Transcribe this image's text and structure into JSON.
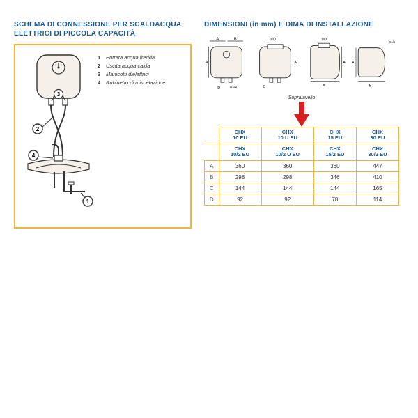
{
  "accent_color": "#1d5a91",
  "border_color": "#f3b33d",
  "arrow_color": "#d81f1f",
  "line_color": "#333333",
  "fill_color": "#f5f0ea",
  "left": {
    "title": "SCHEMA DI CONNESSIONE PER SCALDACQUA ELETTRICI DI PICCOLA CAPACITÀ",
    "legend": [
      {
        "n": "1",
        "t": "Entrata acqua fredda"
      },
      {
        "n": "2",
        "t": "Uscita acqua calda"
      },
      {
        "n": "3",
        "t": "Manicotti dielettrici"
      },
      {
        "n": "4",
        "t": "Rubinetto di miscelazione"
      }
    ]
  },
  "right": {
    "title": "DIMENSIONI (in mm) E DIMA DI INSTALLAZIONE",
    "sopra": "Sopralavello",
    "dim_labels": {
      "a": "A",
      "b": "B",
      "c": "C",
      "d": "D",
      "g12": "G1/2\"",
      "hundred": "100"
    },
    "table": {
      "head1": [
        "CHX\n10 EU",
        "CHX\n10 U EU",
        "CHX\n15 EU",
        "CHX\n30 EU"
      ],
      "head2": [
        "CHX\n10/2 EU",
        "CHX\n10/2 U EU",
        "CHX\n15/2 EU",
        "CHX\n30/2 EU"
      ],
      "rows": [
        {
          "letter": "A",
          "vals": [
            "360",
            "360",
            "360",
            "447"
          ]
        },
        {
          "letter": "B",
          "vals": [
            "298",
            "298",
            "346",
            "410"
          ]
        },
        {
          "letter": "C",
          "vals": [
            "144",
            "144",
            "144",
            "165"
          ]
        },
        {
          "letter": "D",
          "vals": [
            "92",
            "92",
            "78",
            "114"
          ]
        }
      ]
    }
  }
}
